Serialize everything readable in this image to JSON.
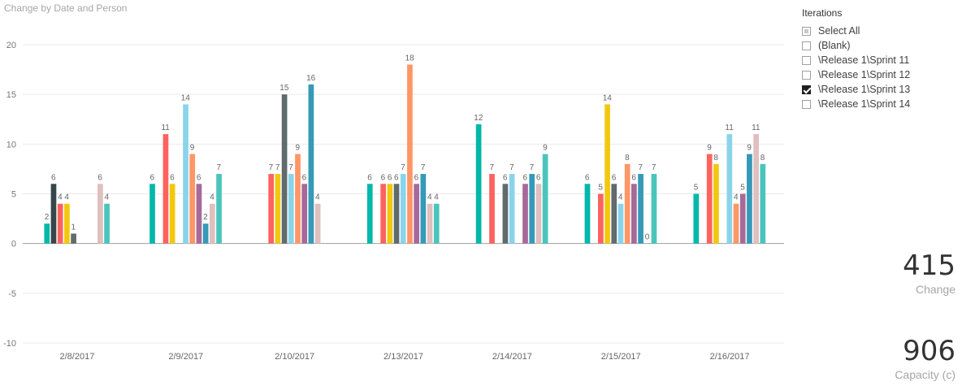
{
  "chart_data": {
    "type": "bar",
    "title": "Change by Date and Person",
    "categories": [
      "2/8/2017",
      "2/9/2017",
      "2/10/2017",
      "2/13/2017",
      "2/14/2017",
      "2/15/2017",
      "2/16/2017"
    ],
    "ylim": [
      -10,
      20
    ],
    "yticks": [
      20,
      15,
      10,
      5,
      0,
      -5,
      -10
    ],
    "grid": true,
    "legend": "none",
    "colors": [
      "#01b8aa",
      "#374649",
      "#fd625e",
      "#f2c80f",
      "#5f6b6d",
      "#8ad4eb",
      "#fe9666",
      "#a66999",
      "#3599b8",
      "#dfbfbf",
      "#4ac5bb"
    ],
    "groups": [
      {
        "category": "2/8/2017",
        "bars": [
          {
            "value": 2,
            "color": "#01b8aa"
          },
          {
            "value": 6,
            "color": "#374649"
          },
          {
            "value": 4,
            "color": "#fd625e"
          },
          {
            "value": 4,
            "color": "#f2c80f"
          },
          {
            "value": 1,
            "color": "#5f6b6d"
          },
          {
            "value": null
          },
          {
            "value": null
          },
          {
            "value": null
          },
          {
            "value": 6,
            "color": "#dfbfbf"
          },
          {
            "value": 4,
            "color": "#4ac5bb"
          }
        ]
      },
      {
        "category": "2/9/2017",
        "bars": [
          {
            "value": 6,
            "color": "#01b8aa"
          },
          {
            "value": null
          },
          {
            "value": 11,
            "color": "#fd625e"
          },
          {
            "value": 6,
            "color": "#f2c80f"
          },
          {
            "value": null
          },
          {
            "value": 14,
            "color": "#8ad4eb"
          },
          {
            "value": 9,
            "color": "#fe9666"
          },
          {
            "value": 6,
            "color": "#a66999"
          },
          {
            "value": 2,
            "color": "#3599b8"
          },
          {
            "value": 4,
            "color": "#dfbfbf"
          },
          {
            "value": 7,
            "color": "#4ac5bb"
          }
        ]
      },
      {
        "category": "2/10/2017",
        "bars": [
          {
            "value": 7,
            "color": "#fd625e"
          },
          {
            "value": 7,
            "color": "#f2c80f"
          },
          {
            "value": 15,
            "color": "#5f6b6d"
          },
          {
            "value": 7,
            "color": "#8ad4eb"
          },
          {
            "value": 9,
            "color": "#fe9666"
          },
          {
            "value": 6,
            "color": "#a66999"
          },
          {
            "value": 16,
            "color": "#3599b8"
          },
          {
            "value": 4,
            "color": "#dfbfbf"
          }
        ]
      },
      {
        "category": "2/13/2017",
        "bars": [
          {
            "value": 6,
            "color": "#01b8aa"
          },
          {
            "value": null
          },
          {
            "value": 6,
            "color": "#fd625e"
          },
          {
            "value": 6,
            "color": "#f2c80f"
          },
          {
            "value": 6,
            "color": "#5f6b6d"
          },
          {
            "value": 7,
            "color": "#8ad4eb"
          },
          {
            "value": 18,
            "color": "#fe9666"
          },
          {
            "value": 6,
            "color": "#a66999"
          },
          {
            "value": 7,
            "color": "#3599b8"
          },
          {
            "value": 4,
            "color": "#dfbfbf"
          },
          {
            "value": 4,
            "color": "#4ac5bb"
          }
        ]
      },
      {
        "category": "2/14/2017",
        "bars": [
          {
            "value": 12,
            "color": "#01b8aa"
          },
          {
            "value": null
          },
          {
            "value": 7,
            "color": "#fd625e"
          },
          {
            "value": null
          },
          {
            "value": 6,
            "color": "#5f6b6d"
          },
          {
            "value": 7,
            "color": "#8ad4eb"
          },
          {
            "value": null
          },
          {
            "value": 6,
            "color": "#a66999"
          },
          {
            "value": 7,
            "color": "#3599b8"
          },
          {
            "value": 6,
            "color": "#dfbfbf"
          },
          {
            "value": 9,
            "color": "#4ac5bb"
          }
        ]
      },
      {
        "category": "2/15/2017",
        "bars": [
          {
            "value": 6,
            "color": "#01b8aa"
          },
          {
            "value": null
          },
          {
            "value": 5,
            "color": "#fd625e"
          },
          {
            "value": 14,
            "color": "#f2c80f"
          },
          {
            "value": 6,
            "color": "#5f6b6d"
          },
          {
            "value": 4,
            "color": "#8ad4eb"
          },
          {
            "value": 8,
            "color": "#fe9666"
          },
          {
            "value": 6,
            "color": "#a66999"
          },
          {
            "value": 7,
            "color": "#3599b8"
          },
          {
            "value": 0,
            "color": "#dfbfbf"
          },
          {
            "value": 7,
            "color": "#4ac5bb"
          }
        ]
      },
      {
        "category": "2/16/2017",
        "bars": [
          {
            "value": 5,
            "color": "#01b8aa"
          },
          {
            "value": null
          },
          {
            "value": 9,
            "color": "#fd625e"
          },
          {
            "value": 8,
            "color": "#f2c80f"
          },
          {
            "value": null
          },
          {
            "value": 11,
            "color": "#8ad4eb"
          },
          {
            "value": 4,
            "color": "#fe9666"
          },
          {
            "value": 5,
            "color": "#a66999"
          },
          {
            "value": 9,
            "color": "#3599b8"
          },
          {
            "value": 11,
            "color": "#dfbfbf"
          },
          {
            "value": 8,
            "color": "#4ac5bb"
          }
        ]
      }
    ]
  },
  "slicer": {
    "title": "Iterations",
    "items": [
      {
        "label": "Select All",
        "state": "partial"
      },
      {
        "label": "(Blank)",
        "state": "unchecked"
      },
      {
        "label": "\\Release 1\\Sprint 11",
        "state": "unchecked"
      },
      {
        "label": "\\Release 1\\Sprint 12",
        "state": "unchecked"
      },
      {
        "label": "\\Release 1\\Sprint 13",
        "state": "checked"
      },
      {
        "label": "\\Release 1\\Sprint 14",
        "state": "unchecked"
      }
    ]
  },
  "cards": {
    "change": {
      "value": "415",
      "label": "Change"
    },
    "capacity": {
      "value": "906",
      "label": "Capacity (c)"
    }
  }
}
